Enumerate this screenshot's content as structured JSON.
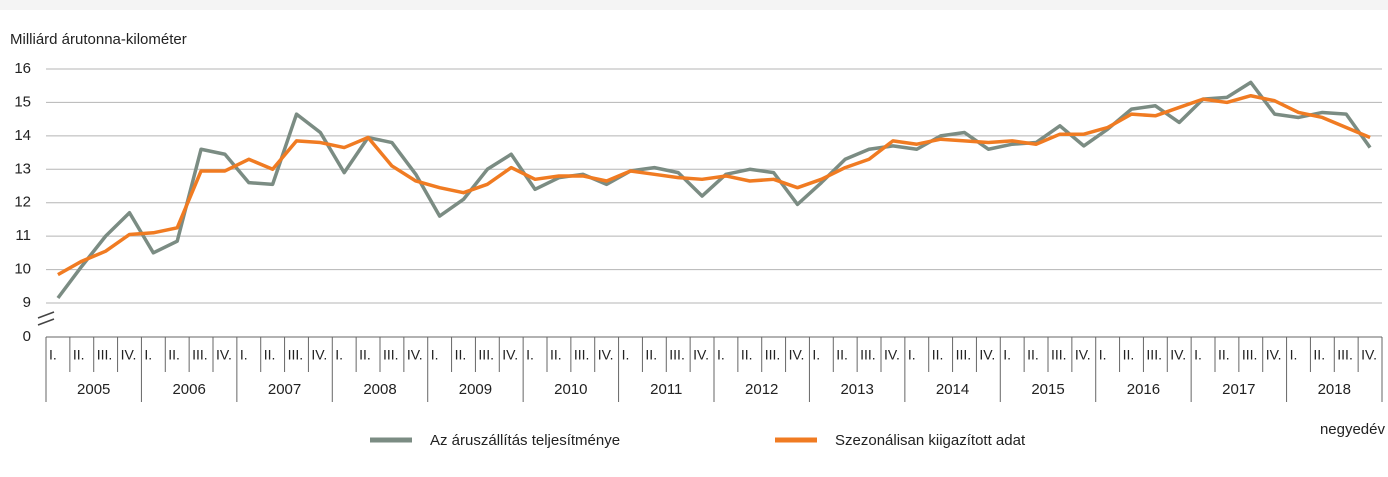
{
  "chart_data": {
    "type": "line",
    "y_label": "Milliárd árutonna-kilométer",
    "x_label": "negyedév",
    "categories": [
      "I.",
      "II.",
      "III.",
      "IV.",
      "I.",
      "II.",
      "III.",
      "IV.",
      "I.",
      "II.",
      "III.",
      "IV.",
      "I.",
      "II.",
      "III.",
      "IV.",
      "I.",
      "II.",
      "III.",
      "IV.",
      "I.",
      "II.",
      "III.",
      "IV.",
      "I.",
      "II.",
      "III.",
      "IV.",
      "I.",
      "II.",
      "III.",
      "IV.",
      "I.",
      "II.",
      "III.",
      "IV.",
      "I.",
      "II.",
      "III.",
      "IV.",
      "I.",
      "II.",
      "III.",
      "IV.",
      "I.",
      "II.",
      "III.",
      "IV.",
      "I.",
      "II.",
      "III.",
      "IV.",
      "I.",
      "II.",
      "III.",
      "IV."
    ],
    "years": [
      "2005",
      "2006",
      "2007",
      "2008",
      "2009",
      "2010",
      "2011",
      "2012",
      "2013",
      "2014",
      "2015",
      "2016",
      "2017",
      "2018"
    ],
    "series": [
      {
        "name": "Az áruszállítás teljesítménye",
        "color": "#7b8c83",
        "values": [
          9.15,
          10.1,
          11.0,
          11.7,
          10.5,
          10.85,
          13.6,
          13.45,
          12.6,
          12.55,
          14.65,
          14.1,
          12.9,
          13.95,
          13.8,
          12.85,
          11.6,
          12.1,
          13.0,
          13.45,
          12.4,
          12.75,
          12.85,
          12.55,
          12.95,
          13.05,
          12.9,
          12.2,
          12.85,
          13.0,
          12.9,
          11.95,
          12.6,
          13.3,
          13.6,
          13.7,
          13.6,
          14.0,
          14.1,
          13.6,
          13.75,
          13.8,
          14.3,
          13.7,
          14.2,
          14.8,
          14.9,
          14.4,
          15.1,
          15.15,
          15.6,
          14.65,
          14.55,
          14.7,
          14.65,
          13.65
        ]
      },
      {
        "name": "Szezonálisan kiigazított adat",
        "color": "#f07b22",
        "values": [
          9.85,
          10.25,
          10.55,
          11.05,
          11.1,
          11.25,
          12.95,
          12.95,
          13.3,
          13.0,
          13.85,
          13.8,
          13.65,
          13.95,
          13.1,
          12.65,
          12.45,
          12.3,
          12.55,
          13.05,
          12.7,
          12.8,
          12.8,
          12.65,
          12.95,
          12.85,
          12.75,
          12.7,
          12.8,
          12.65,
          12.7,
          12.45,
          12.7,
          13.05,
          13.3,
          13.85,
          13.75,
          13.9,
          13.85,
          13.8,
          13.85,
          13.75,
          14.05,
          14.05,
          14.25,
          14.65,
          14.6,
          14.85,
          15.1,
          15.0,
          15.2,
          15.05,
          14.7,
          14.55,
          14.25,
          13.95
        ]
      }
    ],
    "ylim": [
      0,
      16
    ],
    "y_break": [
      0,
      9
    ],
    "yticks": [
      0,
      9,
      10,
      11,
      12,
      13,
      14,
      15,
      16
    ],
    "grid": true,
    "legend": "bottom"
  }
}
